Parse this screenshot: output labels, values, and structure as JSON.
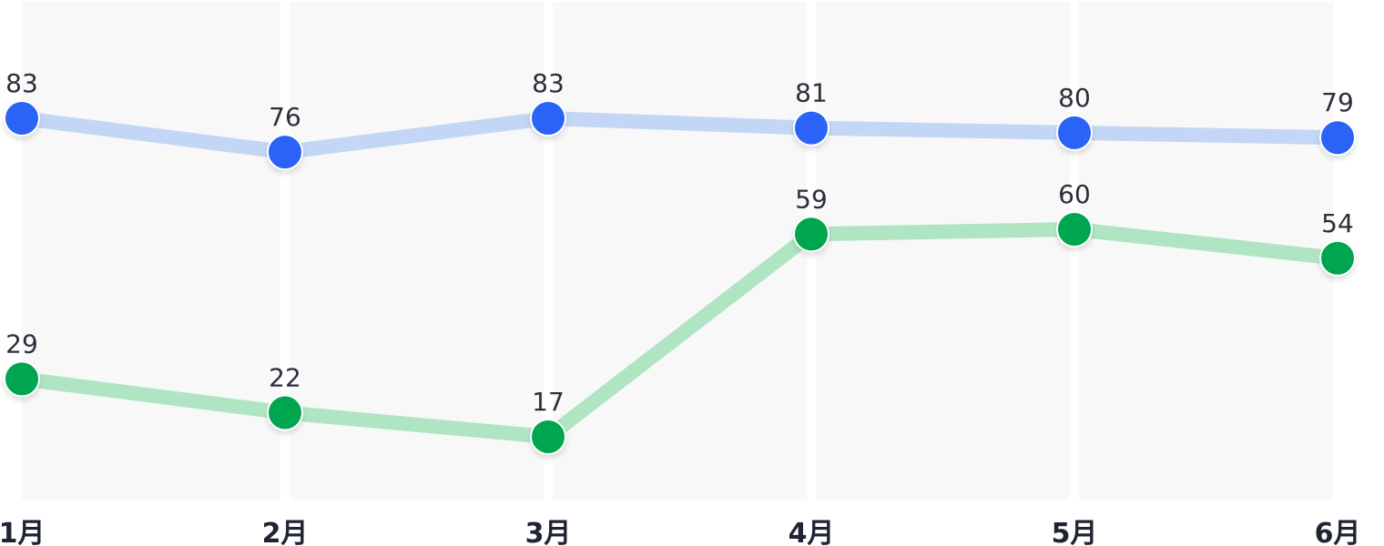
{
  "chart_data": {
    "type": "line",
    "categories": [
      "1月",
      "2月",
      "3月",
      "4月",
      "5月",
      "6月"
    ],
    "series": [
      {
        "values": [
          83,
          76,
          83,
          81,
          80,
          79
        ],
        "line_color": "#c3d6f5",
        "point_color": "#2c64f5"
      },
      {
        "values": [
          29,
          22,
          17,
          59,
          60,
          54
        ],
        "line_color": "#b0e5c4",
        "point_color": "#00a650"
      }
    ],
    "title": "",
    "xlabel": "",
    "ylabel": "",
    "ylim": [
      0,
      100
    ],
    "grid": false,
    "legend": "none",
    "data_labels": true,
    "column_band_color": "#f8f8f8"
  }
}
